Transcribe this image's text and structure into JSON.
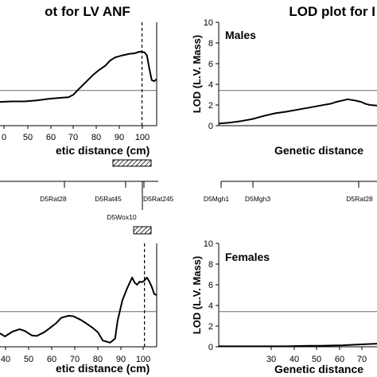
{
  "chart_data": [
    {
      "id": "tl",
      "type": "line",
      "title": "ot for LV ANF",
      "xlabel": "etic distance (cm)",
      "ylabel": "",
      "xticks": [
        "0",
        "50",
        "60",
        "70",
        "80",
        "90",
        "100"
      ],
      "xlim": [
        40,
        104
      ],
      "ylim": [
        0,
        10
      ],
      "threshold": 3.4,
      "peak_line_x": 98,
      "series": [
        {
          "x": [
            40,
            45,
            50,
            55,
            60,
            65,
            68,
            70,
            72,
            75,
            78,
            80,
            83,
            85,
            87,
            90,
            93,
            95,
            97,
            99,
            100,
            101,
            102,
            103,
            104
          ],
          "values": [
            2.3,
            2.35,
            2.35,
            2.45,
            2.6,
            2.7,
            2.75,
            3.0,
            3.5,
            4.2,
            4.9,
            5.3,
            5.8,
            6.3,
            6.6,
            6.8,
            6.95,
            7.0,
            7.15,
            7.1,
            6.8,
            5.5,
            4.4,
            4.3,
            4.5
          ]
        }
      ]
    },
    {
      "id": "tr",
      "type": "line",
      "title": "LOD plot for I",
      "panel_label": "Males",
      "xlabel": "Genetic distance",
      "ylabel": "LOD (L.V. Mass)",
      "yticks": [
        "0",
        "2",
        "4",
        "6",
        "8",
        "10"
      ],
      "xlim": [
        0,
        70
      ],
      "ylim": [
        0,
        10
      ],
      "threshold": 3.4,
      "series": [
        {
          "x": [
            0,
            5,
            10,
            15,
            20,
            25,
            30,
            35,
            40,
            45,
            50,
            52,
            55,
            57,
            60,
            63,
            65,
            67,
            70
          ],
          "values": [
            0.2,
            0.3,
            0.45,
            0.65,
            0.95,
            1.2,
            1.35,
            1.55,
            1.75,
            1.95,
            2.15,
            2.3,
            2.45,
            2.55,
            2.45,
            2.3,
            2.1,
            2.0,
            1.95
          ]
        }
      ]
    },
    {
      "id": "bl",
      "type": "line",
      "xlabel": "etic distance (cm)",
      "ylabel": "",
      "xticks": [
        "40",
        "50",
        "60",
        "70",
        "80",
        "90",
        "100"
      ],
      "xlim": [
        40,
        104
      ],
      "ylim": [
        0,
        10
      ],
      "threshold": 3.4,
      "peak_line_x": 99,
      "series": [
        {
          "x": [
            40,
            42,
            45,
            48,
            50,
            53,
            55,
            58,
            60,
            63,
            65,
            68,
            70,
            73,
            75,
            78,
            80,
            82,
            85,
            87,
            88,
            90,
            92,
            94,
            95,
            96,
            97,
            98,
            99,
            100,
            101,
            102,
            103,
            104
          ],
          "values": [
            1.3,
            1.0,
            1.45,
            1.7,
            1.55,
            1.1,
            1.05,
            1.4,
            1.75,
            2.3,
            2.8,
            3.0,
            2.95,
            2.6,
            2.3,
            1.8,
            1.4,
            0.6,
            0.4,
            0.8,
            2.5,
            4.5,
            5.7,
            6.7,
            6.2,
            6.0,
            6.3,
            6.25,
            6.4,
            6.7,
            6.3,
            5.8,
            5.1,
            5.0
          ]
        }
      ]
    },
    {
      "id": "br",
      "type": "line",
      "panel_label": "Females",
      "xlabel": "Genetic distance",
      "ylabel": "LOD (L.V. Mass)",
      "yticks": [
        "0",
        "2",
        "4",
        "6",
        "8",
        "10"
      ],
      "xticks": [
        "30",
        "40",
        "50",
        "60",
        "70"
      ],
      "xlim": [
        0,
        70
      ],
      "ylim": [
        0,
        10
      ],
      "threshold": 3.4,
      "series": [
        {
          "x": [
            0,
            5,
            10,
            15,
            20,
            25,
            30,
            35,
            40,
            45,
            50,
            55,
            60,
            65,
            70
          ],
          "values": [
            0.05,
            0.05,
            0.05,
            0.05,
            0.05,
            0.05,
            0.05,
            0.08,
            0.1,
            0.1,
            0.12,
            0.15,
            0.2,
            0.25,
            0.3
          ]
        }
      ]
    }
  ],
  "marker_maps": {
    "left_labels": [
      "D5Rat28",
      "D5Rat45",
      "D5Rat245",
      "D5Wox10"
    ],
    "right_labels": [
      "D5Mgh1",
      "D5Mgh3",
      "D5Rat28"
    ]
  }
}
